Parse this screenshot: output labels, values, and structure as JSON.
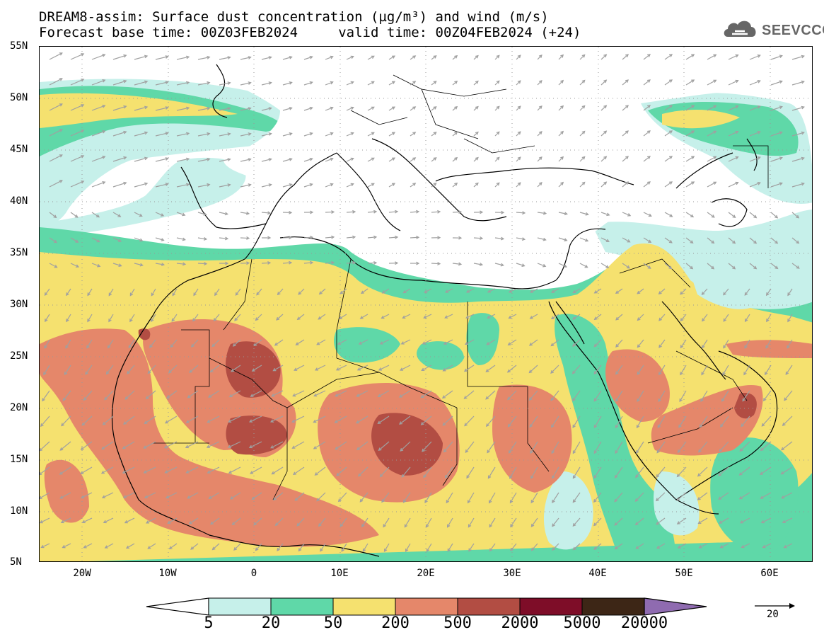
{
  "title_line1": "DREAM8-assim: Surface dust concentration (µg/m³) and wind (m/s)",
  "title_line2": "Forecast base time: 00Z03FEB2024     valid time: 00Z04FEB2024 (+24)",
  "logo": {
    "text": "SEEVCCC",
    "icon": "cloud-icon"
  },
  "map": {
    "region": "North Africa, Europe and Middle East",
    "lon_range": [
      -25,
      65
    ],
    "lat_range": [
      5,
      55
    ],
    "lat_labels": [
      "55N",
      "50N",
      "45N",
      "40N",
      "35N",
      "30N",
      "25N",
      "20N",
      "15N",
      "10N",
      "5N"
    ],
    "lon_labels": [
      "20W",
      "10W",
      "0",
      "10E",
      "20E",
      "30E",
      "40E",
      "50E",
      "60E"
    ]
  },
  "colorbar": {
    "labels": [
      "5",
      "20",
      "50",
      "200",
      "500",
      "2000",
      "5000",
      "20000"
    ],
    "colors": [
      "#ffffff",
      "#c6f0ea",
      "#5fd8a8",
      "#f5e16f",
      "#e5876a",
      "#b24d43",
      "#7e0d28",
      "#3d2616",
      "#8f6bb0"
    ]
  },
  "wind_reference": {
    "value": "20",
    "icon": "arrow-right-icon"
  }
}
